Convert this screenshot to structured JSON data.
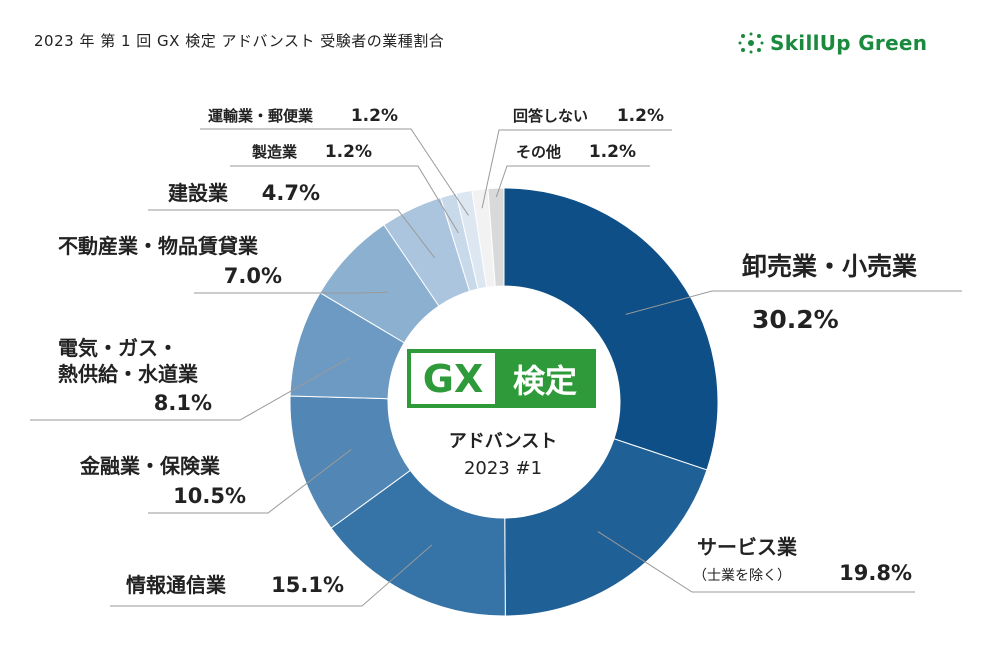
{
  "page": {
    "title": "2023 年 第 1 回 GX 検定 アドバンスト 受験者の業種割合",
    "brand": "SkillUp Green",
    "center_logo_left": "GX",
    "center_logo_right": "検定",
    "center_line1": "アドバンスト",
    "center_line2": "2023 #1"
  },
  "colors": {
    "brand_green": "#1a8a3e",
    "logo_green": "#2e9a3a"
  },
  "chart_data": {
    "type": "pie",
    "donut": true,
    "title": "2023 年 第 1 回 GX 検定 アドバンスト 受験者の業種割合",
    "unit": "%",
    "slices": [
      {
        "label": "卸売業・小売業",
        "value": 30.2,
        "value_label": "30.2%",
        "color": "#0d4f86"
      },
      {
        "label": "サービス業",
        "sublabel": "（士業を除く）",
        "value": 19.8,
        "value_label": "19.8%",
        "color": "#1f6097"
      },
      {
        "label": "情報通信業",
        "value": 15.1,
        "value_label": "15.1%",
        "color": "#3674a7"
      },
      {
        "label": "金融業・保険業",
        "value": 10.5,
        "value_label": "10.5%",
        "color": "#5186b5"
      },
      {
        "label": "電気・ガス・",
        "label2": "熱供給・水道業",
        "value": 8.1,
        "value_label": "8.1%",
        "color": "#6d9ac3"
      },
      {
        "label": "不動産業・物品賃貸業",
        "value": 7.0,
        "value_label": "7.0%",
        "color": "#8cb0d0"
      },
      {
        "label": "建設業",
        "value": 4.7,
        "value_label": "4.7%",
        "color": "#aac5dd"
      },
      {
        "label": "製造業",
        "value": 1.2,
        "value_label": "1.2%",
        "color": "#c8dae9"
      },
      {
        "label": "運輸業・郵便業",
        "value": 1.2,
        "value_label": "1.2%",
        "color": "#dce7f1"
      },
      {
        "label": "回答しない",
        "value": 1.2,
        "value_label": "1.2%",
        "color": "#f2f2f2"
      },
      {
        "label": "その他",
        "value": 1.2,
        "value_label": "1.2%",
        "color": "#d9d9d9"
      }
    ]
  }
}
